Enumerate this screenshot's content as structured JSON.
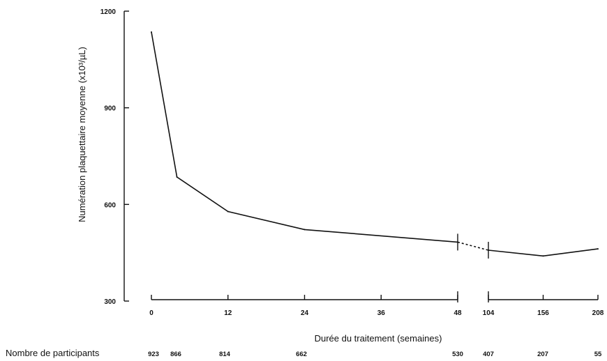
{
  "chart_data": {
    "type": "line",
    "title": "",
    "xlabel": "Durée du traitement (semaines)",
    "ylabel": "Numération plaquettaire moyenne (x10³/µL)",
    "ylim": [
      300,
      1200
    ],
    "y_ticks": [
      "300",
      "600",
      "900",
      "1200"
    ],
    "x_ticks": [
      "0",
      "12",
      "24",
      "36",
      "48",
      "104",
      "156",
      "208"
    ],
    "x_axis_break": "between 48 and 104 weeks",
    "grid": false,
    "legend": "none",
    "series": [
      {
        "x": [
          0,
          4,
          12,
          24,
          48,
          104,
          156,
          208
        ],
        "y": [
          1135,
          685,
          578,
          522,
          483,
          458,
          440,
          462
        ],
        "segment_48_to_104": "dashed"
      }
    ],
    "participants": {
      "label": "Nombre de participants",
      "values": [
        "923",
        "866",
        "814",
        "662",
        "530",
        "407",
        "207",
        "55"
      ]
    }
  }
}
